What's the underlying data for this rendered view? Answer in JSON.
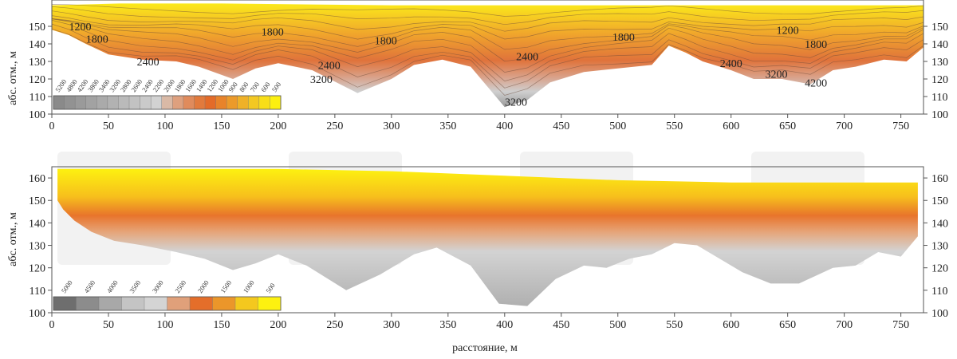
{
  "chart_data": [
    {
      "type": "heatmap",
      "title": "",
      "xlabel": "",
      "ylabel": "абс. отм., м",
      "xlim": [
        0,
        770
      ],
      "ylim": [
        100,
        165
      ],
      "x_ticks": [
        0,
        50,
        100,
        150,
        200,
        250,
        300,
        350,
        400,
        450,
        500,
        550,
        600,
        650,
        700,
        750
      ],
      "y_ticks": [
        100,
        110,
        120,
        130,
        140,
        150
      ],
      "contours": true,
      "contour_labels": [
        {
          "text": "1200",
          "x": 25,
          "y": 150
        },
        {
          "text": "1800",
          "x": 40,
          "y": 143
        },
        {
          "text": "1800",
          "x": 195,
          "y": 147
        },
        {
          "text": "1800",
          "x": 295,
          "y": 142
        },
        {
          "text": "1800",
          "x": 505,
          "y": 144
        },
        {
          "text": "1200",
          "x": 650,
          "y": 148
        },
        {
          "text": "1800",
          "x": 675,
          "y": 140
        },
        {
          "text": "2400",
          "x": 85,
          "y": 130
        },
        {
          "text": "2400",
          "x": 245,
          "y": 128
        },
        {
          "text": "2400",
          "x": 420,
          "y": 133
        },
        {
          "text": "2400",
          "x": 600,
          "y": 129
        },
        {
          "text": "3200",
          "x": 238,
          "y": 120
        },
        {
          "text": "3200",
          "x": 410,
          "y": 107
        },
        {
          "text": "3200",
          "x": 640,
          "y": 123
        },
        {
          "text": "4200",
          "x": 675,
          "y": 118
        }
      ],
      "colorbar": {
        "range": [
          5200,
          500
        ],
        "tick_labels": [
          "5200",
          "4800",
          "4200",
          "3800",
          "3400",
          "3200",
          "2800",
          "2600",
          "2400",
          "2200",
          "2000",
          "1800",
          "1600",
          "1400",
          "1200",
          "1000",
          "900",
          "800",
          "700",
          "600",
          "500"
        ],
        "colors": [
          "#8a8a8a",
          "#929292",
          "#9a9a9a",
          "#a2a2a2",
          "#aaaaaa",
          "#b2b2b2",
          "#bababa",
          "#c2c2c2",
          "#cacaca",
          "#d2d2d2",
          "#d9b9a6",
          "#dea07e",
          "#e08b5c",
          "#e27a3c",
          "#e46b28",
          "#e8832a",
          "#ec9a2a",
          "#efb128",
          "#f3c822",
          "#f8de18",
          "#fcf010"
        ]
      }
    },
    {
      "type": "heatmap",
      "title": "",
      "xlabel": "расстояние, м",
      "ylabel": "абс. отм., м",
      "xlim": [
        0,
        770
      ],
      "ylim": [
        100,
        165
      ],
      "x_ticks": [
        0,
        50,
        100,
        150,
        200,
        250,
        300,
        350,
        400,
        450,
        500,
        550,
        600,
        650,
        700,
        750
      ],
      "y_ticks": [
        100,
        110,
        120,
        130,
        140,
        150,
        160
      ],
      "contours": false,
      "colorbar": {
        "range": [
          5000,
          500
        ],
        "tick_labels": [
          "5000",
          "4500",
          "4000",
          "3500",
          "3000",
          "2500",
          "2000",
          "1500",
          "1000",
          "500"
        ],
        "colors": [
          "#6e6e6e",
          "#8c8c8c",
          "#a8a8a8",
          "#c4c4c4",
          "#d4d4d4",
          "#e0a07a",
          "#e46e2a",
          "#eb962a",
          "#f4c81e",
          "#fdf110"
        ]
      }
    }
  ]
}
